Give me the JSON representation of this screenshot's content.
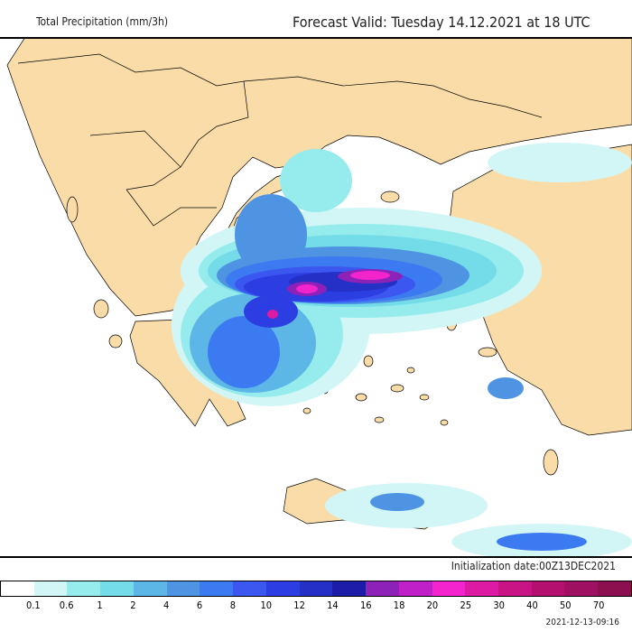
{
  "header": {
    "title": "Total Precipitation (mm/3h)",
    "forecast_valid": "Forecast Valid:  Tuesday 14.12.2021 at 18 UTC"
  },
  "footer": {
    "initialization": "Initialization date:00Z13DEC2021",
    "timestamp": "2021-12-13-09:16"
  },
  "legend": {
    "colors": [
      "#ffffff",
      "#d2f6f6",
      "#96ecec",
      "#74dce8",
      "#5cb6e6",
      "#4e94e2",
      "#3c7af2",
      "#3c56f0",
      "#2c3ee2",
      "#2430c6",
      "#1c1ca8",
      "#8c22b8",
      "#c020c8",
      "#f424cc",
      "#dc1aa4",
      "#c81484",
      "#b41070",
      "#a01062",
      "#8c1050"
    ],
    "labels": [
      "0.1",
      "0.6",
      "1",
      "2",
      "4",
      "6",
      "8",
      "10",
      "12",
      "14",
      "16",
      "18",
      "20",
      "25",
      "30",
      "40",
      "50",
      "70"
    ]
  },
  "map": {
    "land_color": "#fadca8",
    "sea_color": "#ffffff",
    "border_color": "#000000"
  }
}
